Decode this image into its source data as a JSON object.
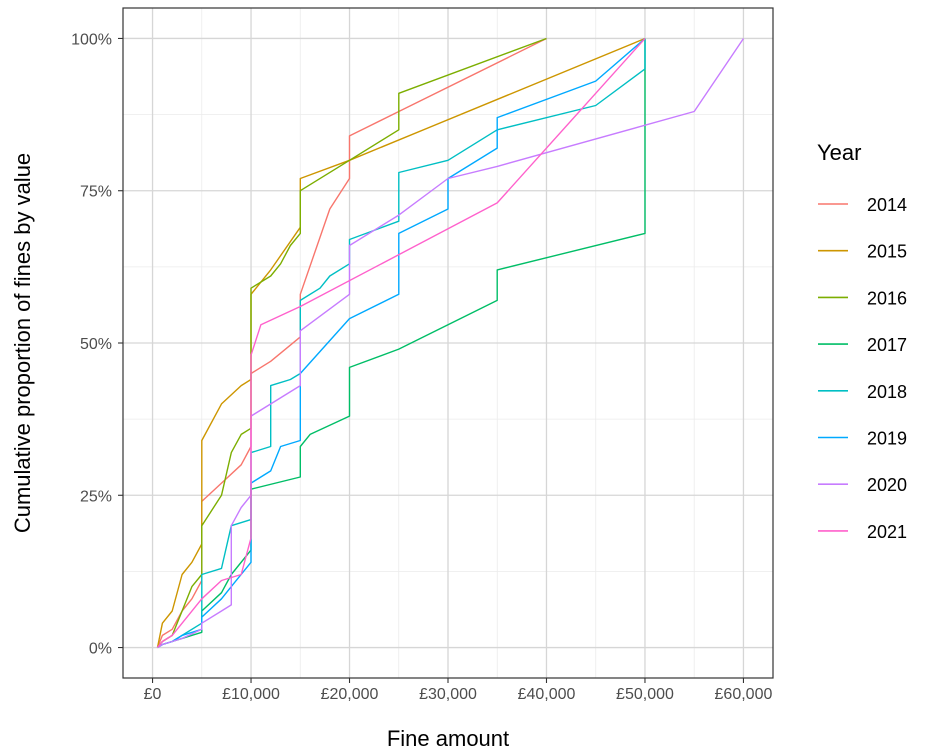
{
  "chart_data": {
    "type": "line",
    "xlabel": "Fine amount",
    "ylabel": "Cumulative proportion of fines by value",
    "xlim": [
      -3000,
      63000
    ],
    "ylim": [
      -0.05,
      1.05
    ],
    "x_ticks": [
      0,
      10000,
      20000,
      30000,
      40000,
      50000,
      60000
    ],
    "x_tick_labels": [
      "£0",
      "£10,000",
      "£20,000",
      "£30,000",
      "£40,000",
      "£50,000",
      "£60,000"
    ],
    "y_ticks": [
      0,
      0.25,
      0.5,
      0.75,
      1.0
    ],
    "y_tick_labels": [
      "0%",
      "25%",
      "50%",
      "75%",
      "100%"
    ],
    "grid": true,
    "legend": {
      "title": "Year",
      "position": "right"
    },
    "series": [
      {
        "name": "2014",
        "color": "#F8766D",
        "points": [
          [
            500,
            0
          ],
          [
            1000,
            0.02
          ],
          [
            2000,
            0.03
          ],
          [
            3000,
            0.06
          ],
          [
            4000,
            0.08
          ],
          [
            5000,
            0.11
          ],
          [
            5000,
            0.24
          ],
          [
            7000,
            0.27
          ],
          [
            9000,
            0.3
          ],
          [
            10000,
            0.33
          ],
          [
            10000,
            0.45
          ],
          [
            12000,
            0.47
          ],
          [
            15000,
            0.51
          ],
          [
            15000,
            0.58
          ],
          [
            18000,
            0.72
          ],
          [
            20000,
            0.77
          ],
          [
            20000,
            0.84
          ],
          [
            25000,
            0.88
          ],
          [
            40000,
            1.0
          ]
        ]
      },
      {
        "name": "2015",
        "color": "#CD9600",
        "points": [
          [
            500,
            0
          ],
          [
            1000,
            0.04
          ],
          [
            2000,
            0.06
          ],
          [
            3000,
            0.12
          ],
          [
            4000,
            0.14
          ],
          [
            5000,
            0.17
          ],
          [
            5000,
            0.34
          ],
          [
            7000,
            0.4
          ],
          [
            9000,
            0.43
          ],
          [
            10000,
            0.44
          ],
          [
            10000,
            0.58
          ],
          [
            12000,
            0.62
          ],
          [
            15000,
            0.69
          ],
          [
            15000,
            0.77
          ],
          [
            20000,
            0.8
          ],
          [
            50000,
            1.0
          ]
        ]
      },
      {
        "name": "2016",
        "color": "#7CAE00",
        "points": [
          [
            500,
            0
          ],
          [
            1000,
            0.01
          ],
          [
            2000,
            0.02
          ],
          [
            3000,
            0.06
          ],
          [
            4000,
            0.1
          ],
          [
            5000,
            0.12
          ],
          [
            5000,
            0.2
          ],
          [
            7000,
            0.25
          ],
          [
            8000,
            0.32
          ],
          [
            9000,
            0.35
          ],
          [
            10000,
            0.36
          ],
          [
            10000,
            0.59
          ],
          [
            12000,
            0.61
          ],
          [
            13000,
            0.63
          ],
          [
            14000,
            0.66
          ],
          [
            15000,
            0.68
          ],
          [
            15000,
            0.75
          ],
          [
            20000,
            0.8
          ],
          [
            25000,
            0.85
          ],
          [
            25000,
            0.91
          ],
          [
            40000,
            1.0
          ]
        ]
      },
      {
        "name": "2017",
        "color": "#00BE67",
        "points": [
          [
            500,
            0
          ],
          [
            1000,
            0.005
          ],
          [
            2000,
            0.01
          ],
          [
            3000,
            0.015
          ],
          [
            5000,
            0.025
          ],
          [
            5000,
            0.06
          ],
          [
            7000,
            0.09
          ],
          [
            8000,
            0.12
          ],
          [
            10000,
            0.16
          ],
          [
            10000,
            0.26
          ],
          [
            15000,
            0.28
          ],
          [
            15000,
            0.33
          ],
          [
            16000,
            0.35
          ],
          [
            20000,
            0.38
          ],
          [
            20000,
            0.46
          ],
          [
            25000,
            0.49
          ],
          [
            30000,
            0.53
          ],
          [
            35000,
            0.57
          ],
          [
            35000,
            0.62
          ],
          [
            50000,
            0.68
          ],
          [
            50000,
            1.0
          ]
        ]
      },
      {
        "name": "2018",
        "color": "#00BFC4",
        "points": [
          [
            500,
            0
          ],
          [
            1000,
            0.005
          ],
          [
            2000,
            0.01
          ],
          [
            3000,
            0.02
          ],
          [
            5000,
            0.04
          ],
          [
            5000,
            0.12
          ],
          [
            7000,
            0.13
          ],
          [
            8000,
            0.2
          ],
          [
            10000,
            0.21
          ],
          [
            10000,
            0.32
          ],
          [
            12000,
            0.33
          ],
          [
            12000,
            0.43
          ],
          [
            14000,
            0.44
          ],
          [
            15000,
            0.45
          ],
          [
            15000,
            0.57
          ],
          [
            17000,
            0.59
          ],
          [
            18000,
            0.61
          ],
          [
            20000,
            0.63
          ],
          [
            20000,
            0.67
          ],
          [
            25000,
            0.7
          ],
          [
            25000,
            0.78
          ],
          [
            30000,
            0.8
          ],
          [
            35000,
            0.85
          ],
          [
            45000,
            0.89
          ],
          [
            50000,
            0.95
          ],
          [
            50000,
            1.0
          ]
        ]
      },
      {
        "name": "2019",
        "color": "#00A9FF",
        "points": [
          [
            500,
            0
          ],
          [
            1000,
            0.005
          ],
          [
            2000,
            0.01
          ],
          [
            3000,
            0.02
          ],
          [
            5000,
            0.03
          ],
          [
            5000,
            0.05
          ],
          [
            7000,
            0.08
          ],
          [
            8000,
            0.1
          ],
          [
            10000,
            0.14
          ],
          [
            10000,
            0.27
          ],
          [
            12000,
            0.29
          ],
          [
            13000,
            0.33
          ],
          [
            15000,
            0.34
          ],
          [
            15000,
            0.45
          ],
          [
            20000,
            0.54
          ],
          [
            25000,
            0.58
          ],
          [
            25000,
            0.68
          ],
          [
            30000,
            0.72
          ],
          [
            30000,
            0.77
          ],
          [
            35000,
            0.82
          ],
          [
            35000,
            0.87
          ],
          [
            45000,
            0.93
          ],
          [
            50000,
            1.0
          ]
        ]
      },
      {
        "name": "2020",
        "color": "#C77CFF",
        "points": [
          [
            500,
            0
          ],
          [
            1000,
            0.005
          ],
          [
            2000,
            0.01
          ],
          [
            3000,
            0.015
          ],
          [
            5000,
            0.03
          ],
          [
            5000,
            0.04
          ],
          [
            7000,
            0.06
          ],
          [
            8000,
            0.07
          ],
          [
            8000,
            0.2
          ],
          [
            9000,
            0.23
          ],
          [
            10000,
            0.25
          ],
          [
            10000,
            0.38
          ],
          [
            15000,
            0.43
          ],
          [
            15000,
            0.52
          ],
          [
            20000,
            0.58
          ],
          [
            20000,
            0.66
          ],
          [
            25000,
            0.71
          ],
          [
            30000,
            0.77
          ],
          [
            35000,
            0.79
          ],
          [
            55000,
            0.88
          ],
          [
            60000,
            1.0
          ]
        ]
      },
      {
        "name": "2021",
        "color": "#FF61CC",
        "points": [
          [
            500,
            0
          ],
          [
            1000,
            0.01
          ],
          [
            2000,
            0.02
          ],
          [
            3000,
            0.04
          ],
          [
            5000,
            0.08
          ],
          [
            7000,
            0.11
          ],
          [
            9000,
            0.12
          ],
          [
            10000,
            0.18
          ],
          [
            10000,
            0.48
          ],
          [
            11000,
            0.53
          ],
          [
            15000,
            0.56
          ],
          [
            35000,
            0.73
          ],
          [
            50000,
            1.0
          ]
        ]
      }
    ]
  }
}
